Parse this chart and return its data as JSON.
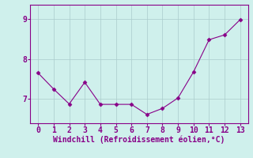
{
  "x": [
    0,
    1,
    2,
    3,
    4,
    5,
    6,
    7,
    8,
    9,
    10,
    11,
    12,
    13
  ],
  "y": [
    7.65,
    7.25,
    6.88,
    7.42,
    6.87,
    6.87,
    6.87,
    6.62,
    6.77,
    7.03,
    7.68,
    8.48,
    8.6,
    8.98
  ],
  "line_color": "#880088",
  "marker": "D",
  "marker_size": 2.5,
  "xlabel": "Windchill (Refroidissement éolien,°C)",
  "xlim": [
    -0.5,
    13.5
  ],
  "ylim": [
    6.4,
    9.35
  ],
  "yticks": [
    7,
    8,
    9
  ],
  "xticks": [
    0,
    1,
    2,
    3,
    4,
    5,
    6,
    7,
    8,
    9,
    10,
    11,
    12,
    13
  ],
  "bg_color": "#cff0ec",
  "grid_color": "#aacccc",
  "xlabel_color": "#880088",
  "tick_color": "#880088",
  "spine_color": "#880088",
  "xlabel_fontsize": 7,
  "tick_fontsize": 7,
  "linewidth": 0.8
}
